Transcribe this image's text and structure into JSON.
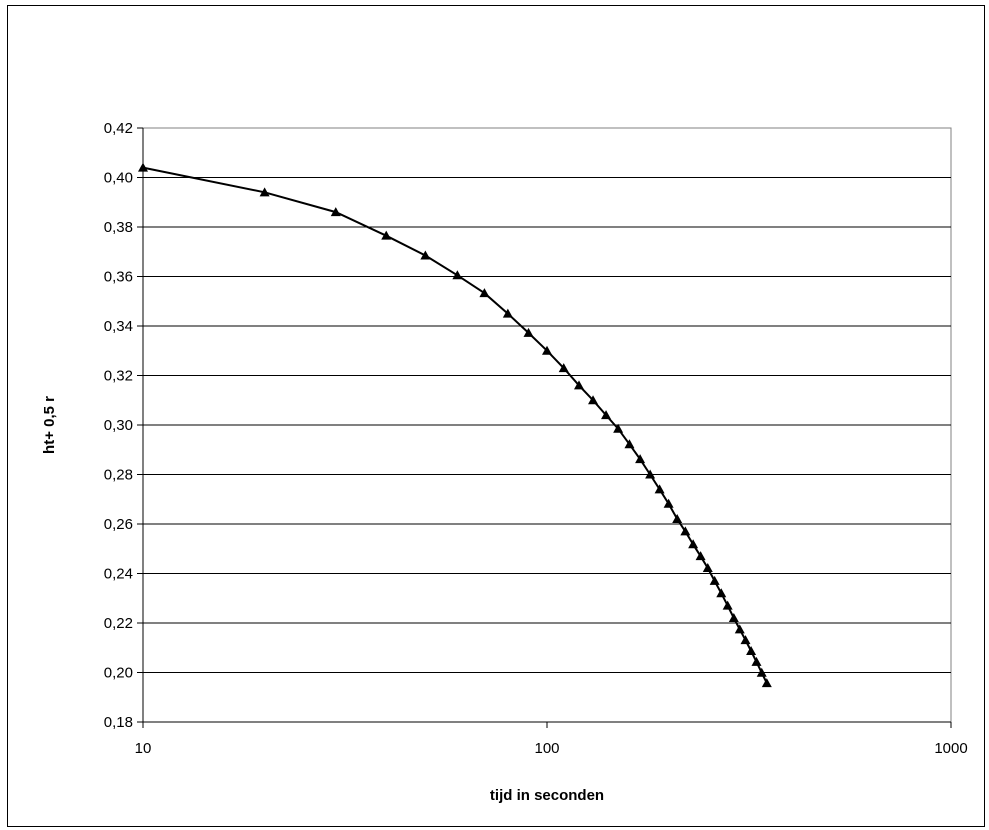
{
  "chart_data": {
    "type": "line",
    "title": "",
    "xlabel": "tijd in seconden",
    "ylabel": "ht+ 0,5 r",
    "xscale": "log",
    "xlim": [
      10,
      1000
    ],
    "ylim": [
      0.18,
      0.42
    ],
    "grid": "horizontal",
    "legend": "none",
    "marker": "triangle",
    "line_color": "#000000",
    "x_tick_labels": [
      "10",
      "100",
      "1000"
    ],
    "y_tick_labels": [
      "0,18",
      "0,20",
      "0,22",
      "0,24",
      "0,26",
      "0,28",
      "0,30",
      "0,32",
      "0,34",
      "0,36",
      "0,38",
      "0,40",
      "0,42"
    ],
    "series": [
      {
        "x": [
          10,
          20,
          30,
          40,
          50,
          60,
          70,
          80,
          90,
          100,
          110,
          120,
          130,
          140,
          150,
          160,
          170,
          180,
          190,
          200,
          210,
          220,
          230,
          240,
          250,
          260,
          270,
          280,
          290,
          300,
          310,
          320,
          330,
          340,
          350
        ],
        "y": [
          0.404,
          0.394,
          0.386,
          0.3765,
          0.3685,
          0.3605,
          0.3533,
          0.345,
          0.3372,
          0.33,
          0.323,
          0.316,
          0.31,
          0.304,
          0.2985,
          0.2922,
          0.2862,
          0.28,
          0.274,
          0.2682,
          0.262,
          0.257,
          0.2518,
          0.247,
          0.2422,
          0.237,
          0.232,
          0.227,
          0.222,
          0.2174,
          0.2131,
          0.2087,
          0.2043,
          0.1999,
          0.1957
        ]
      }
    ]
  }
}
